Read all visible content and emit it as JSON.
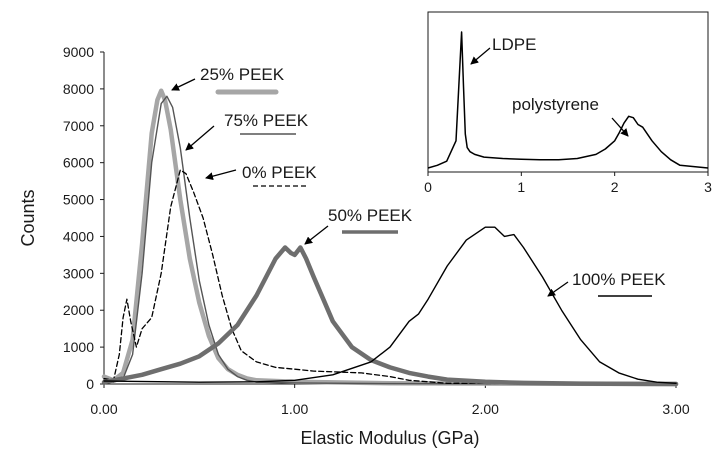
{
  "chart_data": [
    {
      "type": "line",
      "xlabel": "Elastic Modulus (GPa)",
      "ylabel": "Counts",
      "xlim": [
        0,
        3
      ],
      "ylim": [
        0,
        9000
      ],
      "x_ticks": [
        "0.00",
        "1.00",
        "2.00",
        "3.00"
      ],
      "y_ticks": [
        "0",
        "1000",
        "2000",
        "3000",
        "4000",
        "5000",
        "6000",
        "7000",
        "8000",
        "9000"
      ],
      "grid": false,
      "legend": "annotations beside curves",
      "series": [
        {
          "name": "25% PEEK",
          "color": "#a6a6a6",
          "style": "thick",
          "x": [
            0,
            0.05,
            0.1,
            0.15,
            0.2,
            0.25,
            0.28,
            0.3,
            0.32,
            0.35,
            0.4,
            0.45,
            0.5,
            0.55,
            0.6,
            0.65,
            0.7,
            0.75,
            0.8,
            1.0,
            1.5,
            3.0
          ],
          "y": [
            200,
            100,
            300,
            1200,
            3800,
            6800,
            7700,
            7950,
            7700,
            6900,
            5000,
            3400,
            2200,
            1300,
            700,
            400,
            250,
            150,
            100,
            60,
            20,
            0
          ]
        },
        {
          "name": "75% PEEK",
          "color": "#555555",
          "style": "thin",
          "x": [
            0,
            0.05,
            0.1,
            0.15,
            0.2,
            0.25,
            0.3,
            0.33,
            0.36,
            0.4,
            0.45,
            0.5,
            0.55,
            0.6,
            0.65,
            0.7,
            0.75,
            0.8,
            1.0,
            1.5,
            3.0
          ],
          "y": [
            100,
            50,
            150,
            800,
            3000,
            6000,
            7600,
            7800,
            7500,
            6400,
            4500,
            2800,
            1600,
            800,
            400,
            200,
            100,
            50,
            30,
            10,
            0
          ]
        },
        {
          "name": "0% PEEK",
          "color": "#000000",
          "style": "dashed",
          "x": [
            0,
            0.05,
            0.08,
            0.1,
            0.12,
            0.14,
            0.17,
            0.2,
            0.25,
            0.3,
            0.35,
            0.4,
            0.43,
            0.47,
            0.52,
            0.57,
            0.62,
            0.67,
            0.72,
            0.8,
            0.9,
            1.0,
            1.1,
            1.2,
            1.35,
            1.5,
            1.6,
            1.8,
            3.0
          ],
          "y": [
            150,
            100,
            800,
            1800,
            2300,
            1700,
            1000,
            1500,
            1800,
            3000,
            4800,
            5800,
            5700,
            5200,
            4500,
            3500,
            2400,
            1500,
            900,
            600,
            450,
            400,
            350,
            330,
            300,
            200,
            100,
            20,
            0
          ]
        },
        {
          "name": "50% PEEK",
          "color": "#6e6e6e",
          "style": "thick",
          "x": [
            0,
            0.1,
            0.2,
            0.3,
            0.4,
            0.5,
            0.6,
            0.7,
            0.8,
            0.85,
            0.9,
            0.95,
            0.98,
            1.0,
            1.03,
            1.06,
            1.1,
            1.15,
            1.2,
            1.3,
            1.4,
            1.5,
            1.6,
            1.7,
            1.8,
            2.0,
            2.2,
            2.5,
            3.0
          ],
          "y": [
            50,
            150,
            250,
            400,
            550,
            750,
            1100,
            1600,
            2400,
            2900,
            3400,
            3700,
            3550,
            3500,
            3700,
            3400,
            2900,
            2300,
            1700,
            1000,
            650,
            450,
            300,
            200,
            120,
            60,
            30,
            10,
            0
          ]
        },
        {
          "name": "100% PEEK",
          "color": "#000000",
          "style": "thin",
          "x": [
            0,
            0.5,
            0.8,
            1.0,
            1.2,
            1.4,
            1.5,
            1.6,
            1.65,
            1.7,
            1.8,
            1.9,
            2.0,
            2.05,
            2.1,
            2.15,
            2.2,
            2.3,
            2.4,
            2.5,
            2.6,
            2.7,
            2.8,
            2.9,
            3.0
          ],
          "y": [
            80,
            50,
            60,
            100,
            250,
            600,
            1000,
            1700,
            1900,
            2300,
            3200,
            3900,
            4250,
            4250,
            4000,
            4050,
            3700,
            2900,
            2000,
            1200,
            600,
            300,
            130,
            50,
            20
          ]
        }
      ],
      "annotations": [
        {
          "text": "25% PEEK",
          "series": "25% PEEK"
        },
        {
          "text": "75% PEEK",
          "series": "75% PEEK"
        },
        {
          "text": "0% PEEK",
          "series": "0% PEEK"
        },
        {
          "text": "50% PEEK",
          "series": "50% PEEK"
        },
        {
          "text": "100% PEEK",
          "series": "100% PEEK"
        }
      ]
    },
    {
      "type": "line",
      "xlim": [
        0,
        3
      ],
      "x_ticks": [
        "0",
        "1",
        "2",
        "3"
      ],
      "y_ticks": [],
      "grid": false,
      "series": [
        {
          "color": "#000000",
          "x": [
            0,
            0.1,
            0.2,
            0.3,
            0.33,
            0.36,
            0.38,
            0.4,
            0.42,
            0.45,
            0.5,
            0.6,
            0.8,
            1.0,
            1.2,
            1.4,
            1.6,
            1.8,
            1.9,
            2.0,
            2.05,
            2.1,
            2.15,
            2.2,
            2.25,
            2.3,
            2.4,
            2.5,
            2.6,
            2.7,
            3.0
          ],
          "y": [
            0,
            20,
            50,
            200,
            600,
            1000,
            600,
            250,
            150,
            120,
            100,
            80,
            70,
            65,
            60,
            60,
            70,
            100,
            140,
            200,
            260,
            330,
            380,
            370,
            320,
            300,
            200,
            120,
            60,
            20,
            0
          ]
        }
      ],
      "annotations": [
        {
          "text": "LDPE"
        },
        {
          "text": "polystyrene"
        }
      ]
    }
  ]
}
